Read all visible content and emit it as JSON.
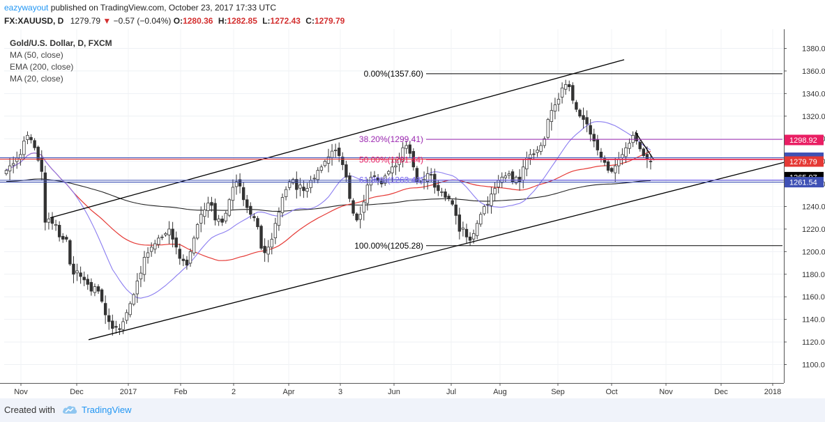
{
  "header": {
    "user": "eazywayout",
    "published": " published on TradingView.com, October 23, 2017 17:33 UTC",
    "symbol": "FX:XAUUSD, D",
    "last": "1279.79",
    "change_arrow": "▼",
    "change": "−0.57 (−0.04%)",
    "o_label": "O:",
    "o_value": "1280.36",
    "h_label": "H:",
    "h_value": "1282.85",
    "l_label": "L:",
    "l_value": "1272.43",
    "c_label": "C:",
    "c_value": "1279.79"
  },
  "legend": {
    "title": "Gold/U.S. Dollar, D, FXCM",
    "items": [
      "MA (50, close)",
      "EMA (200, close)",
      "MA (20, close)"
    ]
  },
  "footer": {
    "created_with": "Created with",
    "brand": "TradingView"
  },
  "chart_data": {
    "type": "candlestick",
    "y_ticks": [
      1100,
      1120,
      1140,
      1160,
      1180,
      1200,
      1220,
      1240,
      1260,
      1280,
      1300,
      1320,
      1340,
      1360,
      1380
    ],
    "ylim": [
      1092,
      1392
    ],
    "x_labels": [
      "Nov",
      "Dec",
      "2017",
      "Feb",
      "2",
      "Apr",
      "3",
      "Jun",
      "Jul",
      "Aug",
      "Sep",
      "Oct",
      "Nov",
      "Dec",
      "2018"
    ],
    "fib_levels": [
      {
        "label": "0.00%(1357.60)",
        "value": 1357.6,
        "color": "#000000"
      },
      {
        "label": "38.20%(1299.41)",
        "value": 1299.41,
        "color": "#9c27b0"
      },
      {
        "label": "50.00%(1281.44)",
        "value": 1281.44,
        "color": "#e91e63"
      },
      {
        "label": "61.80%(1263.46)",
        "value": 1263.46,
        "color": "#7b68ee"
      },
      {
        "label": "100.00%(1205.28)",
        "value": 1205.28,
        "color": "#000000"
      }
    ],
    "price_labels": [
      {
        "text": "1298.92",
        "value": 1298.92,
        "bg": "#e91e63"
      },
      {
        "text": "1283.16",
        "value": 1283.16,
        "bg": "#3f51b5"
      },
      {
        "text": "1281.87",
        "value": 1281.87,
        "bg": "#3f51b5"
      },
      {
        "text": "1279.79",
        "value": 1279.79,
        "bg": "#e53935"
      },
      {
        "text": "1265.97",
        "value": 1265.97,
        "bg": "#000000"
      },
      {
        "text": "1261.54",
        "value": 1261.54,
        "bg": "#3f51b5"
      }
    ],
    "closes": [
      1272,
      1276,
      1278,
      1283,
      1286,
      1298,
      1303,
      1299,
      1292,
      1281,
      1271,
      1226,
      1229,
      1225,
      1224,
      1213,
      1211,
      1211,
      1189,
      1180,
      1183,
      1178,
      1175,
      1171,
      1165,
      1169,
      1165,
      1156,
      1144,
      1138,
      1132,
      1133,
      1131,
      1138,
      1146,
      1154,
      1162,
      1174,
      1181,
      1195,
      1199,
      1204,
      1207,
      1212,
      1213,
      1216,
      1220,
      1211,
      1204,
      1194,
      1192,
      1188,
      1200,
      1212,
      1224,
      1233,
      1237,
      1243,
      1241,
      1228,
      1229,
      1226,
      1234,
      1246,
      1257,
      1262,
      1258,
      1246,
      1239,
      1233,
      1230,
      1222,
      1203,
      1199,
      1204,
      1211,
      1225,
      1235,
      1248,
      1255,
      1262,
      1264,
      1255,
      1259,
      1254,
      1256,
      1263,
      1265,
      1272,
      1275,
      1280,
      1284,
      1289,
      1290,
      1285,
      1277,
      1266,
      1247,
      1234,
      1228,
      1233,
      1244,
      1259,
      1266,
      1267,
      1263,
      1260,
      1267,
      1271,
      1275,
      1276,
      1282,
      1292,
      1294,
      1287,
      1275,
      1262,
      1262,
      1264,
      1269,
      1268,
      1257,
      1254,
      1253,
      1248,
      1247,
      1242,
      1232,
      1218,
      1221,
      1213,
      1210,
      1216,
      1225,
      1233,
      1240,
      1242,
      1251,
      1256,
      1263,
      1266,
      1267,
      1269,
      1262,
      1266,
      1262,
      1275,
      1283,
      1286,
      1286,
      1290,
      1294,
      1300,
      1317,
      1325,
      1330,
      1335,
      1345,
      1348,
      1346,
      1334,
      1326,
      1320,
      1317,
      1313,
      1304,
      1298,
      1290,
      1283,
      1279,
      1272,
      1271,
      1276,
      1282,
      1286,
      1292,
      1296,
      1303,
      1298,
      1291,
      1285,
      1282,
      1280
    ]
  }
}
